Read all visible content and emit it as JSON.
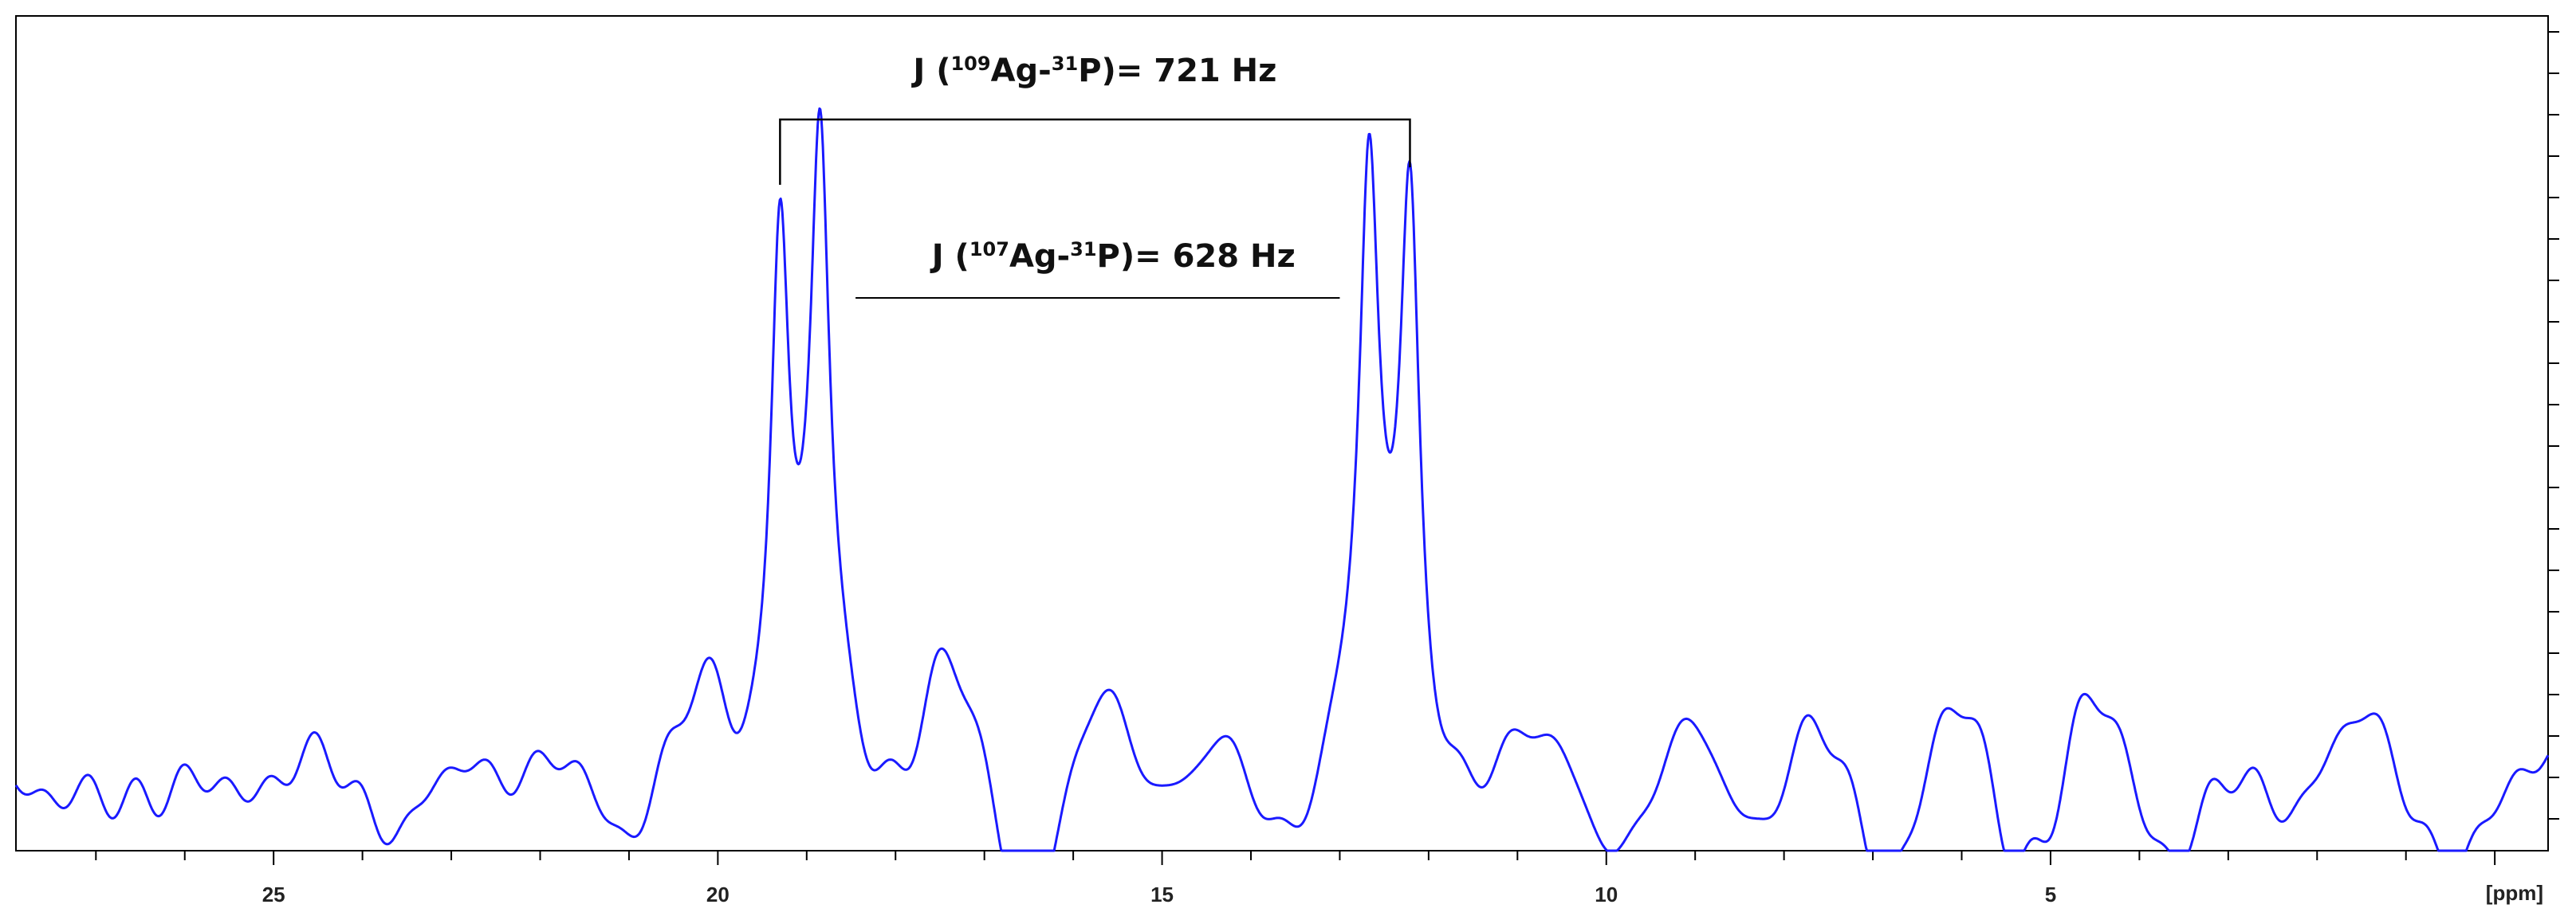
{
  "colors": {
    "spectrum": "#1a1aff",
    "axis": "#000000",
    "background": "#ffffff"
  },
  "chart_data": {
    "type": "line",
    "title": "",
    "xlabel": "[ppm]",
    "ylabel": "",
    "x_reversed": true,
    "xlim": [
      27.9,
      -0.6
    ],
    "ylim": [
      0,
      1
    ],
    "x_ticks": [
      25,
      20,
      15,
      10,
      5
    ],
    "x_tick_labels": [
      "25",
      "20",
      "15",
      "10",
      "5"
    ],
    "grid": false,
    "legend": "none",
    "peaks": [
      {
        "x": 19.3,
        "height": 0.755
      },
      {
        "x": 18.85,
        "height": 0.775
      },
      {
        "x": 12.67,
        "height": 0.695
      },
      {
        "x": 12.21,
        "height": 0.71
      }
    ],
    "annotations": [
      {
        "prefix": "J (",
        "sup1": "109",
        "mid": "Ag-",
        "sup2": "31",
        "suffix": "P)= 721 Hz",
        "bracket_x": [
          19.3,
          12.21
        ]
      },
      {
        "prefix": "J (",
        "sup1": "107",
        "mid": "Ag-",
        "sup2": "31",
        "suffix": "P)= 628 Hz",
        "line_x": [
          18.45,
          13.0
        ]
      }
    ]
  }
}
